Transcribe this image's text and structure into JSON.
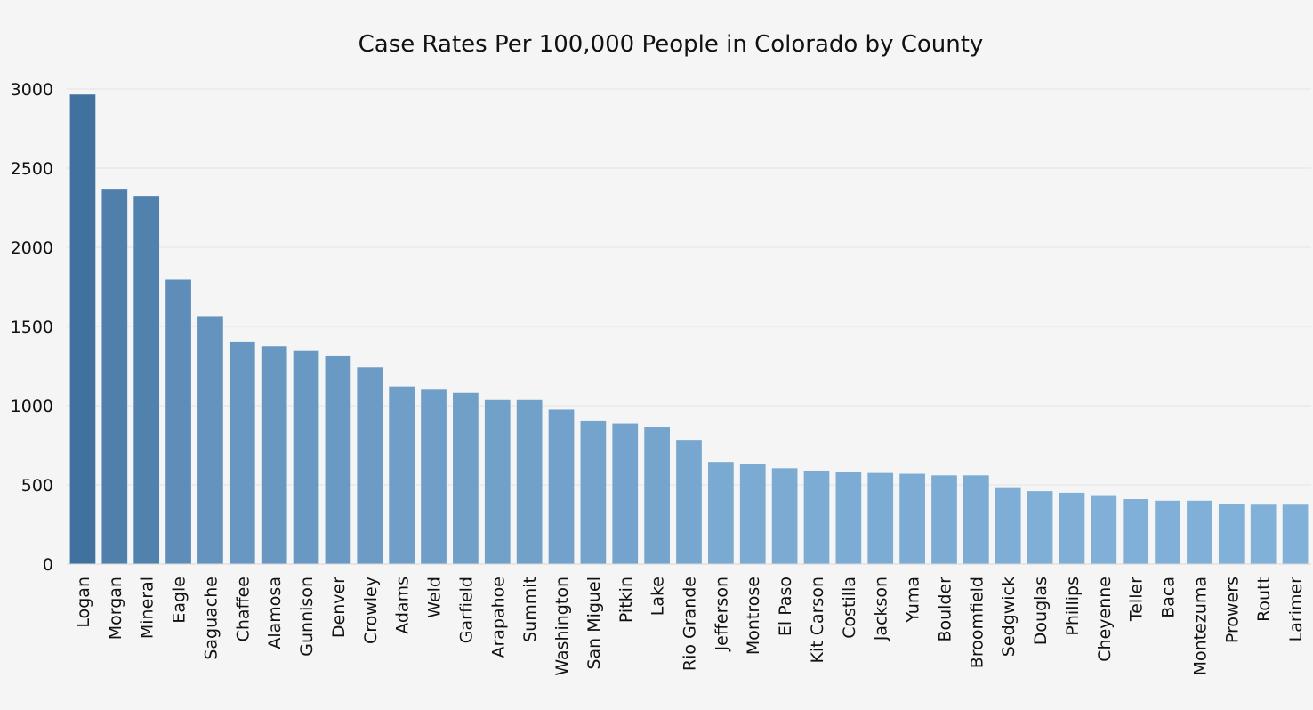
{
  "chart_data": {
    "type": "bar",
    "title": "Case Rates Per 100,000 People in Colorado by County",
    "xlabel": "",
    "ylabel": "",
    "ylim": [
      0,
      3000
    ],
    "yticks": [
      0,
      500,
      1000,
      1500,
      2000,
      2500,
      3000
    ],
    "grid": true,
    "legend": "none",
    "categories": [
      "Logan",
      "Morgan",
      "Mineral",
      "Eagle",
      "Saguache",
      "Chaffee",
      "Alamosa",
      "Gunnison",
      "Denver",
      "Crowley",
      "Adams",
      "Weld",
      "Garfield",
      "Arapahoe",
      "Summit",
      "Washington",
      "San Miguel",
      "Pitkin",
      "Lake",
      "Rio Grande",
      "Jefferson",
      "Montrose",
      "El Paso",
      "Kit Carson",
      "Costilla",
      "Jackson",
      "Yuma",
      "Boulder",
      "Broomfield",
      "Sedgwick",
      "Douglas",
      "Phillips",
      "Cheyenne",
      "Teller",
      "Baca",
      "Montezuma",
      "Prowers",
      "Routt",
      "Larimer"
    ],
    "values": [
      2965,
      2370,
      2325,
      1795,
      1565,
      1405,
      1375,
      1350,
      1315,
      1240,
      1120,
      1105,
      1080,
      1035,
      1035,
      975,
      905,
      890,
      865,
      780,
      645,
      630,
      605,
      590,
      580,
      575,
      570,
      560,
      560,
      485,
      460,
      450,
      435,
      410,
      400,
      400,
      380,
      375,
      375
    ],
    "colors": {
      "bar_dark": "#41719f",
      "bar_light": "#81b0d8",
      "background": "#f5f5f5",
      "grid": "#e2e2e2",
      "text": "#111111"
    }
  }
}
